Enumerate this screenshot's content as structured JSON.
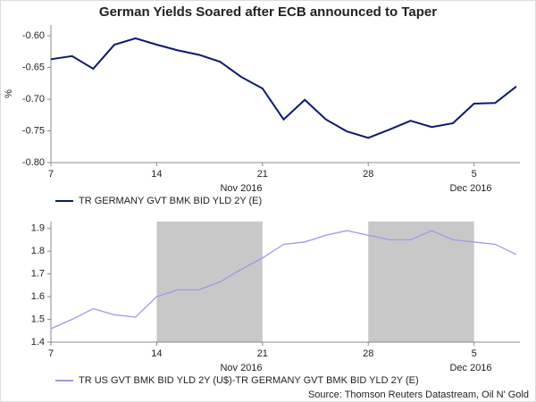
{
  "chart_data": [
    {
      "type": "line",
      "title": "German Yields Soared after ECB announced to Taper",
      "y_label": "%",
      "categories": [
        "7",
        null,
        null,
        null,
        null,
        "14",
        null,
        null,
        null,
        null,
        "21",
        null,
        null,
        null,
        null,
        "28",
        null,
        null,
        null,
        null,
        "5",
        null,
        null
      ],
      "x_groups": [
        "Nov 2016",
        "Dec 2016"
      ],
      "series": [
        {
          "name": "TR GERMANY GVT BMK BID YLD 2Y (E)",
          "color": "#0a1a6e",
          "values": [
            -0.637,
            -0.632,
            -0.652,
            -0.614,
            -0.604,
            -0.614,
            -0.623,
            -0.63,
            -0.641,
            -0.665,
            -0.683,
            -0.732,
            -0.701,
            -0.732,
            -0.751,
            -0.761,
            -0.748,
            -0.734,
            -0.744,
            -0.738,
            -0.707,
            -0.706,
            -0.68
          ]
        }
      ],
      "ylim": [
        -0.8,
        -0.583
      ],
      "yticks": [
        {
          "value": -0.6,
          "label": "-0.60"
        },
        {
          "value": -0.65,
          "label": "-0.65"
        },
        {
          "value": -0.7,
          "label": "-0.70"
        },
        {
          "value": -0.75,
          "label": "-0.75"
        },
        {
          "value": -0.8,
          "label": "-0.80"
        }
      ]
    },
    {
      "type": "line",
      "categories": [
        "7",
        null,
        null,
        null,
        null,
        "14",
        null,
        null,
        null,
        null,
        "21",
        null,
        null,
        null,
        null,
        "28",
        null,
        null,
        null,
        null,
        "5",
        null,
        null
      ],
      "x_groups": [
        "Nov 2016",
        "Dec 2016"
      ],
      "shaded": [
        [
          "14",
          "21"
        ],
        [
          "28",
          "5"
        ]
      ],
      "shade_color": "#c8c8c8",
      "series": [
        {
          "name": "TR US GVT BMK BID YLD 2Y (U$)-TR GERMANY GVT BMK BID YLD 2Y (E)",
          "color": "#9a9aee",
          "values": [
            1.459,
            1.5,
            1.547,
            1.52,
            1.51,
            1.6,
            1.63,
            1.63,
            1.665,
            1.72,
            1.77,
            1.83,
            1.84,
            1.87,
            1.89,
            1.87,
            1.85,
            1.85,
            1.89,
            1.85,
            1.84,
            1.83,
            1.785
          ]
        }
      ],
      "ylim": [
        1.4,
        1.93
      ],
      "yticks": [
        1.4,
        1.5,
        1.6,
        1.7,
        1.8,
        1.9
      ],
      "source": "Source: Thomson Reuters Datastream, Oil N' Gold"
    }
  ]
}
